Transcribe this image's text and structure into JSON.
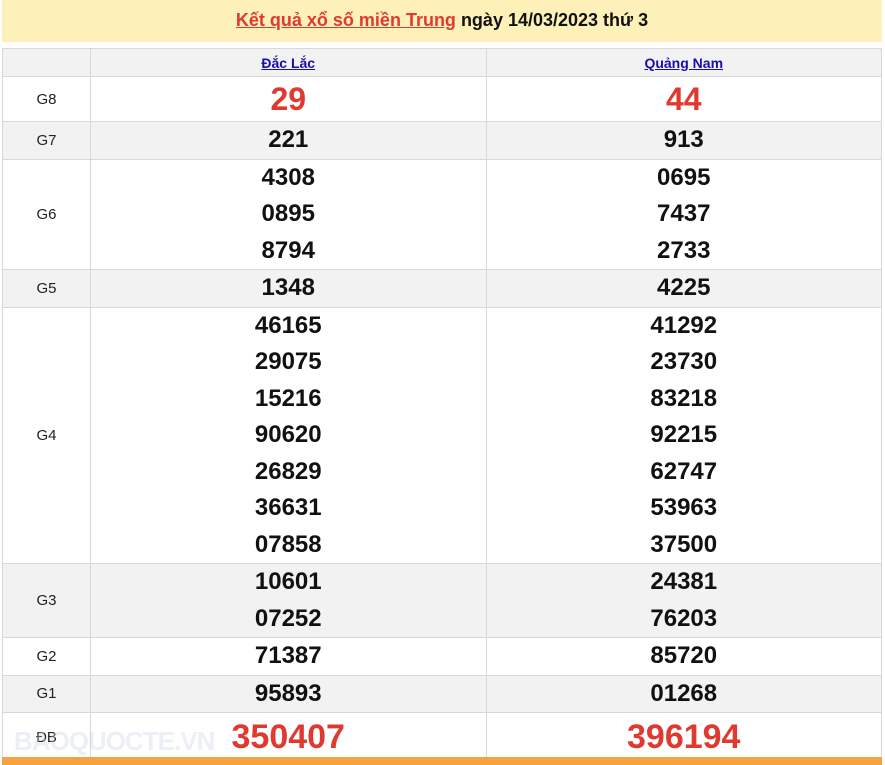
{
  "title": {
    "link": "Kết quả xổ số miền Trung",
    "rest": " ngày 14/03/2023 thứ 3"
  },
  "provinces": [
    "Đắc Lắc",
    "Quảng Nam"
  ],
  "prizes": [
    {
      "label": "G8",
      "values": [
        [
          "29"
        ],
        [
          "44"
        ]
      ]
    },
    {
      "label": "G7",
      "values": [
        [
          "221"
        ],
        [
          "913"
        ]
      ]
    },
    {
      "label": "G6",
      "values": [
        [
          "4308",
          "0895",
          "8794"
        ],
        [
          "0695",
          "7437",
          "2733"
        ]
      ]
    },
    {
      "label": "G5",
      "values": [
        [
          "1348"
        ],
        [
          "4225"
        ]
      ]
    },
    {
      "label": "G4",
      "values": [
        [
          "46165",
          "29075",
          "15216",
          "90620",
          "26829",
          "36631",
          "07858"
        ],
        [
          "41292",
          "23730",
          "83218",
          "92215",
          "62747",
          "53963",
          "37500"
        ]
      ]
    },
    {
      "label": "G3",
      "values": [
        [
          "10601",
          "07252"
        ],
        [
          "24381",
          "76203"
        ]
      ]
    },
    {
      "label": "G2",
      "values": [
        [
          "71387"
        ],
        [
          "85720"
        ]
      ]
    },
    {
      "label": "G1",
      "values": [
        [
          "95893"
        ],
        [
          "01268"
        ]
      ]
    },
    {
      "label": "ĐB",
      "values": [
        [
          "350407"
        ],
        [
          "396194"
        ]
      ]
    }
  ],
  "watermark": "BAOQUOCTE.VN",
  "colors": {
    "highlight": "#e03a30",
    "banner": "#fdf0b8",
    "footer": "#f4a340"
  }
}
